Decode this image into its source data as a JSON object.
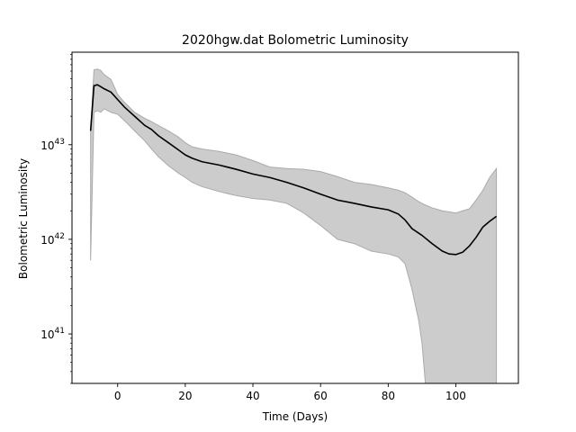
{
  "chart_data": {
    "type": "line",
    "title": "2020hgw.dat Bolometric Luminosity",
    "xlabel": "Time (Days)",
    "ylabel": "Bolometric Luminosity",
    "xlim": [
      -13.5,
      118.5
    ],
    "ylim": [
      3e+40,
      9.5e+43
    ],
    "yscale": "log",
    "grid": false,
    "x_ticks": [
      0,
      20,
      40,
      60,
      80,
      100
    ],
    "y_ticks": [
      {
        "value": 1e+41,
        "base": "10",
        "exp": "41"
      },
      {
        "value": 1e+42,
        "base": "10",
        "exp": "42"
      },
      {
        "value": 1e+43,
        "base": "10",
        "exp": "43"
      }
    ],
    "series": [
      {
        "style": "line",
        "color": "#000000",
        "x": [
          -8,
          -7,
          -6,
          -5,
          -4,
          -2,
          0,
          2,
          5,
          8,
          10,
          12,
          15,
          18,
          20,
          22,
          25,
          30,
          35,
          40,
          45,
          50,
          55,
          60,
          65,
          70,
          75,
          80,
          83,
          85,
          87,
          90,
          93,
          96,
          98,
          100,
          102,
          104,
          106,
          108,
          110,
          112
        ],
        "y": [
          1.4e+43,
          4.2e+43,
          4.3e+43,
          4.1e+43,
          3.9e+43,
          3.6e+43,
          3e+43,
          2.5e+43,
          2e+43,
          1.6e+43,
          1.45e+43,
          1.25e+43,
          1.05e+43,
          8.8e+42,
          7.8e+42,
          7.2e+42,
          6.6e+42,
          6.1e+42,
          5.5e+42,
          4.9e+42,
          4.5e+42,
          4e+42,
          3.5e+42,
          3e+42,
          2.6e+42,
          2.4e+42,
          2.2e+42,
          2.05e+42,
          1.85e+42,
          1.6e+42,
          1.3e+42,
          1.1e+42,
          9e+41,
          7.5e+41,
          7e+41,
          6.9e+41,
          7.3e+41,
          8.5e+41,
          1.05e+42,
          1.35e+42,
          1.55e+42,
          1.75e+42
        ]
      },
      {
        "style": "band",
        "color": "#cccccc",
        "x": [
          -8,
          -7,
          -6,
          -5,
          -4,
          -2,
          0,
          2,
          5,
          8,
          10,
          12,
          15,
          18,
          20,
          22,
          25,
          30,
          35,
          40,
          45,
          50,
          55,
          60,
          65,
          70,
          75,
          80,
          83,
          85,
          87,
          89,
          90,
          91,
          93,
          96,
          100,
          104,
          106,
          108,
          110,
          112
        ],
        "y_lower": [
          6e+41,
          2.2e+43,
          2.3e+43,
          2.2e+43,
          2.4e+43,
          2.2e+43,
          2.1e+43,
          1.8e+43,
          1.4e+43,
          1.1e+43,
          9e+42,
          7.5e+42,
          6e+42,
          5e+42,
          4.5e+42,
          4e+42,
          3.6e+42,
          3.2e+42,
          2.9e+42,
          2.7e+42,
          2.6e+42,
          2.4e+42,
          1.9e+42,
          1.4e+42,
          1e+42,
          9e+41,
          7.5e+41,
          7e+41,
          6.5e+41,
          5.5e+41,
          3e+41,
          1.4e+41,
          8e+40,
          3e+40,
          3e+40,
          3e+40,
          3e+40,
          3e+40,
          3e+40,
          3e+40,
          3e+40,
          3e+40
        ],
        "y_upper": [
          1.4e+43,
          6.2e+43,
          6.3e+43,
          6.1e+43,
          5.5e+43,
          4.9e+43,
          3.4e+43,
          2.8e+43,
          2.2e+43,
          1.9e+43,
          1.75e+43,
          1.6e+43,
          1.4e+43,
          1.2e+43,
          1.05e+43,
          9.5e+42,
          9e+42,
          8.5e+42,
          7.8e+42,
          6.8e+42,
          5.8e+42,
          5.6e+42,
          5.5e+42,
          5.2e+42,
          4.6e+42,
          4e+42,
          3.8e+42,
          3.5e+42,
          3.3e+42,
          3.1e+42,
          2.8e+42,
          2.5e+42,
          2.4e+42,
          2.3e+42,
          2.15e+42,
          2e+42,
          1.9e+42,
          2.1e+42,
          2.6e+42,
          3.3e+42,
          4.5e+42,
          5.6e+42
        ]
      }
    ]
  }
}
